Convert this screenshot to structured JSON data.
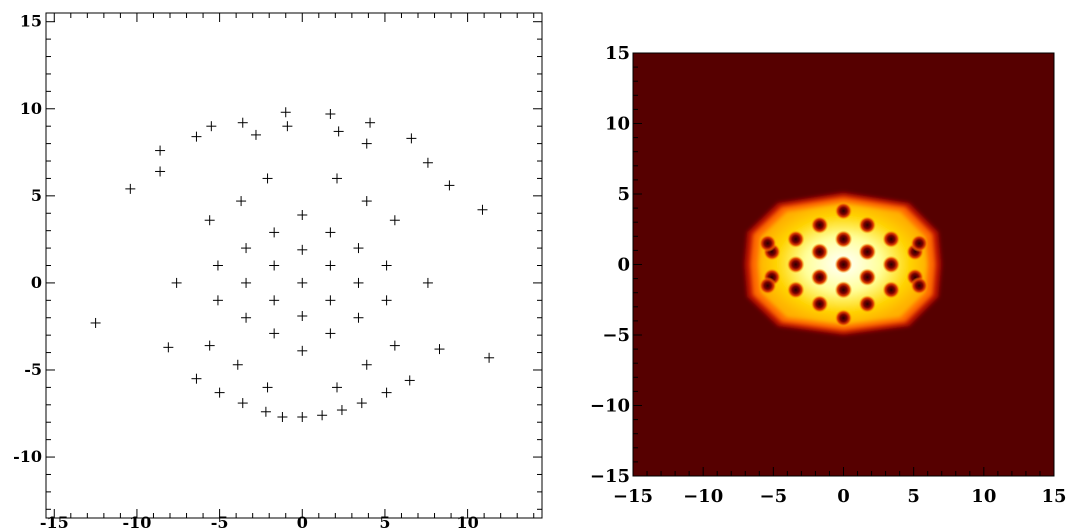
{
  "chart_data": [
    {
      "type": "scatter",
      "marker": "plus",
      "marker_color": "#000000",
      "title": "",
      "xlabel": "",
      "ylabel": "",
      "xlim": [
        -15.5,
        14.5
      ],
      "ylim": [
        -13.5,
        15.5
      ],
      "xticks": [
        -15,
        -10,
        -5,
        0,
        5,
        10
      ],
      "yticks": [
        -10,
        -5,
        0,
        5,
        10,
        15
      ],
      "xticklabels": [
        "-15",
        "-10",
        "-5",
        "0",
        "5",
        "10"
      ],
      "yticklabels": [
        "-10",
        "-5",
        "0",
        "5",
        "10",
        "15"
      ],
      "grid": false,
      "points": [
        [
          0,
          0
        ],
        [
          0,
          1.9
        ],
        [
          0,
          -1.9
        ],
        [
          1.7,
          1
        ],
        [
          1.7,
          -1
        ],
        [
          -1.7,
          1
        ],
        [
          -1.7,
          -1
        ],
        [
          0,
          3.9
        ],
        [
          0,
          -3.9
        ],
        [
          1.7,
          2.9
        ],
        [
          1.7,
          -2.9
        ],
        [
          -1.7,
          2.9
        ],
        [
          -1.7,
          -2.9
        ],
        [
          3.4,
          2
        ],
        [
          3.4,
          -2
        ],
        [
          -3.4,
          2
        ],
        [
          -3.4,
          -2
        ],
        [
          3.4,
          0
        ],
        [
          -3.4,
          0
        ],
        [
          5.1,
          1
        ],
        [
          5.1,
          -1
        ],
        [
          -5.1,
          1
        ],
        [
          -5.1,
          -1
        ],
        [
          2.1,
          6
        ],
        [
          -2.1,
          6
        ],
        [
          3.9,
          4.7
        ],
        [
          -3.7,
          4.7
        ],
        [
          5.6,
          3.6
        ],
        [
          -5.6,
          3.6
        ],
        [
          7.6,
          0
        ],
        [
          -7.6,
          0
        ],
        [
          5.6,
          -3.6
        ],
        [
          -5.6,
          -3.6
        ],
        [
          3.9,
          -4.7
        ],
        [
          -3.9,
          -4.7
        ],
        [
          2.1,
          -6
        ],
        [
          -2.1,
          -6
        ],
        [
          -1,
          9.8
        ],
        [
          1.7,
          9.7
        ],
        [
          -0.9,
          9
        ],
        [
          2.2,
          8.7
        ],
        [
          -3.6,
          9.2
        ],
        [
          4.1,
          9.2
        ],
        [
          -5.5,
          9
        ],
        [
          -2.8,
          8.5
        ],
        [
          -6.4,
          8.4
        ],
        [
          3.9,
          8
        ],
        [
          6.6,
          8.3
        ],
        [
          -8.6,
          7.6
        ],
        [
          7.6,
          6.9
        ],
        [
          -8.6,
          6.4
        ],
        [
          -10.4,
          5.4
        ],
        [
          8.9,
          5.6
        ],
        [
          10.9,
          4.2
        ],
        [
          -12.5,
          -2.3
        ],
        [
          -8.1,
          -3.7
        ],
        [
          8.3,
          -3.8
        ],
        [
          11.3,
          -4.3
        ],
        [
          -6.4,
          -5.5
        ],
        [
          6.5,
          -5.6
        ],
        [
          -5,
          -6.3
        ],
        [
          5.1,
          -6.3
        ],
        [
          -3.6,
          -6.9
        ],
        [
          3.6,
          -6.9
        ],
        [
          -2.2,
          -7.4
        ],
        [
          2.4,
          -7.3
        ],
        [
          -1.2,
          -7.7
        ],
        [
          0,
          -7.7
        ],
        [
          1.2,
          -7.6
        ]
      ]
    },
    {
      "type": "heatmap",
      "colormap": [
        "#560000",
        "#c41a00",
        "#ff6a00",
        "#ffc400",
        "#ffff9a",
        "#ffffff"
      ],
      "background_color": "#560000",
      "title": "",
      "xlabel": "",
      "ylabel": "",
      "xlim": [
        -15,
        15
      ],
      "ylim": [
        -15,
        15
      ],
      "xticks": [
        -15,
        -10,
        -5,
        0,
        5,
        10,
        15
      ],
      "yticks": [
        -15,
        -10,
        -5,
        0,
        5,
        10,
        15
      ],
      "xticklabels": [
        "−15",
        "−10",
        "−5",
        "0",
        "5",
        "10",
        "15"
      ],
      "yticklabels": [
        "−15",
        "−10",
        "−5",
        "0",
        "5",
        "10",
        "15"
      ],
      "grid": false,
      "blob_outline": [
        [
          -4.5,
          4.2
        ],
        [
          0,
          4.9
        ],
        [
          4.5,
          4.2
        ],
        [
          6.5,
          2.2
        ],
        [
          6.7,
          0
        ],
        [
          6.5,
          -2.2
        ],
        [
          4.5,
          -4.2
        ],
        [
          0,
          -4.8
        ],
        [
          -4.5,
          -4.2
        ],
        [
          -6.6,
          -2.2
        ],
        [
          -6.8,
          0
        ],
        [
          -6.6,
          2.2
        ]
      ],
      "vortices": [
        [
          0,
          0
        ],
        [
          0,
          1.8
        ],
        [
          0,
          -1.8
        ],
        [
          1.7,
          0.9
        ],
        [
          1.7,
          -0.9
        ],
        [
          -1.7,
          0.9
        ],
        [
          -1.7,
          -0.9
        ],
        [
          0,
          3.8
        ],
        [
          0,
          -3.8
        ],
        [
          1.7,
          2.8
        ],
        [
          1.7,
          -2.8
        ],
        [
          -1.7,
          2.8
        ],
        [
          -1.7,
          -2.8
        ],
        [
          3.4,
          1.8
        ],
        [
          3.4,
          -1.8
        ],
        [
          -3.4,
          1.8
        ],
        [
          -3.4,
          -1.8
        ],
        [
          3.4,
          0
        ],
        [
          -3.4,
          0
        ],
        [
          5.1,
          0.9
        ],
        [
          5.1,
          -0.9
        ],
        [
          -5.1,
          0.9
        ],
        [
          -5.1,
          -0.9
        ],
        [
          -5.4,
          1.5
        ],
        [
          -5.4,
          -1.5
        ],
        [
          5.4,
          1.5
        ],
        [
          5.4,
          -1.5
        ]
      ]
    }
  ]
}
